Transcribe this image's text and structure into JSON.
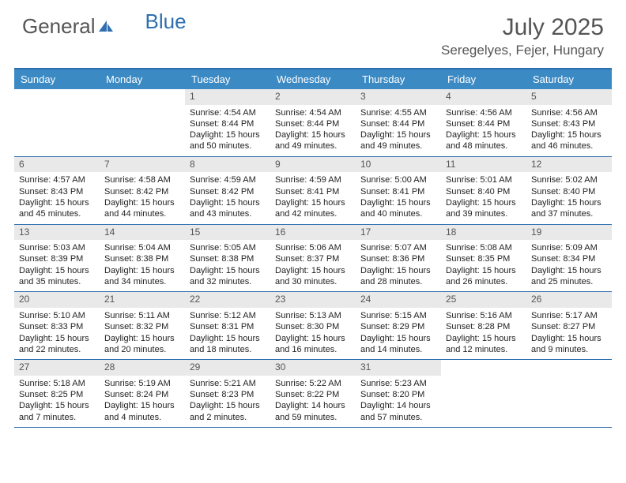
{
  "brand": {
    "part1": "General",
    "part2": "Blue"
  },
  "title": "July 2025",
  "location": "Seregelyes, Fejer, Hungary",
  "colors": {
    "header_bar": "#3b8ac4",
    "accent": "#2f6fb0",
    "cell_num_bg": "#e9e9e9",
    "text": "#555555"
  },
  "dayHeaders": [
    "Sunday",
    "Monday",
    "Tuesday",
    "Wednesday",
    "Thursday",
    "Friday",
    "Saturday"
  ],
  "weeks": [
    [
      {
        "n": "",
        "lines": []
      },
      {
        "n": "",
        "lines": []
      },
      {
        "n": "1",
        "lines": [
          "Sunrise: 4:54 AM",
          "Sunset: 8:44 PM",
          "Daylight: 15 hours and 50 minutes."
        ]
      },
      {
        "n": "2",
        "lines": [
          "Sunrise: 4:54 AM",
          "Sunset: 8:44 PM",
          "Daylight: 15 hours and 49 minutes."
        ]
      },
      {
        "n": "3",
        "lines": [
          "Sunrise: 4:55 AM",
          "Sunset: 8:44 PM",
          "Daylight: 15 hours and 49 minutes."
        ]
      },
      {
        "n": "4",
        "lines": [
          "Sunrise: 4:56 AM",
          "Sunset: 8:44 PM",
          "Daylight: 15 hours and 48 minutes."
        ]
      },
      {
        "n": "5",
        "lines": [
          "Sunrise: 4:56 AM",
          "Sunset: 8:43 PM",
          "Daylight: 15 hours and 46 minutes."
        ]
      }
    ],
    [
      {
        "n": "6",
        "lines": [
          "Sunrise: 4:57 AM",
          "Sunset: 8:43 PM",
          "Daylight: 15 hours and 45 minutes."
        ]
      },
      {
        "n": "7",
        "lines": [
          "Sunrise: 4:58 AM",
          "Sunset: 8:42 PM",
          "Daylight: 15 hours and 44 minutes."
        ]
      },
      {
        "n": "8",
        "lines": [
          "Sunrise: 4:59 AM",
          "Sunset: 8:42 PM",
          "Daylight: 15 hours and 43 minutes."
        ]
      },
      {
        "n": "9",
        "lines": [
          "Sunrise: 4:59 AM",
          "Sunset: 8:41 PM",
          "Daylight: 15 hours and 42 minutes."
        ]
      },
      {
        "n": "10",
        "lines": [
          "Sunrise: 5:00 AM",
          "Sunset: 8:41 PM",
          "Daylight: 15 hours and 40 minutes."
        ]
      },
      {
        "n": "11",
        "lines": [
          "Sunrise: 5:01 AM",
          "Sunset: 8:40 PM",
          "Daylight: 15 hours and 39 minutes."
        ]
      },
      {
        "n": "12",
        "lines": [
          "Sunrise: 5:02 AM",
          "Sunset: 8:40 PM",
          "Daylight: 15 hours and 37 minutes."
        ]
      }
    ],
    [
      {
        "n": "13",
        "lines": [
          "Sunrise: 5:03 AM",
          "Sunset: 8:39 PM",
          "Daylight: 15 hours and 35 minutes."
        ]
      },
      {
        "n": "14",
        "lines": [
          "Sunrise: 5:04 AM",
          "Sunset: 8:38 PM",
          "Daylight: 15 hours and 34 minutes."
        ]
      },
      {
        "n": "15",
        "lines": [
          "Sunrise: 5:05 AM",
          "Sunset: 8:38 PM",
          "Daylight: 15 hours and 32 minutes."
        ]
      },
      {
        "n": "16",
        "lines": [
          "Sunrise: 5:06 AM",
          "Sunset: 8:37 PM",
          "Daylight: 15 hours and 30 minutes."
        ]
      },
      {
        "n": "17",
        "lines": [
          "Sunrise: 5:07 AM",
          "Sunset: 8:36 PM",
          "Daylight: 15 hours and 28 minutes."
        ]
      },
      {
        "n": "18",
        "lines": [
          "Sunrise: 5:08 AM",
          "Sunset: 8:35 PM",
          "Daylight: 15 hours and 26 minutes."
        ]
      },
      {
        "n": "19",
        "lines": [
          "Sunrise: 5:09 AM",
          "Sunset: 8:34 PM",
          "Daylight: 15 hours and 25 minutes."
        ]
      }
    ],
    [
      {
        "n": "20",
        "lines": [
          "Sunrise: 5:10 AM",
          "Sunset: 8:33 PM",
          "Daylight: 15 hours and 22 minutes."
        ]
      },
      {
        "n": "21",
        "lines": [
          "Sunrise: 5:11 AM",
          "Sunset: 8:32 PM",
          "Daylight: 15 hours and 20 minutes."
        ]
      },
      {
        "n": "22",
        "lines": [
          "Sunrise: 5:12 AM",
          "Sunset: 8:31 PM",
          "Daylight: 15 hours and 18 minutes."
        ]
      },
      {
        "n": "23",
        "lines": [
          "Sunrise: 5:13 AM",
          "Sunset: 8:30 PM",
          "Daylight: 15 hours and 16 minutes."
        ]
      },
      {
        "n": "24",
        "lines": [
          "Sunrise: 5:15 AM",
          "Sunset: 8:29 PM",
          "Daylight: 15 hours and 14 minutes."
        ]
      },
      {
        "n": "25",
        "lines": [
          "Sunrise: 5:16 AM",
          "Sunset: 8:28 PM",
          "Daylight: 15 hours and 12 minutes."
        ]
      },
      {
        "n": "26",
        "lines": [
          "Sunrise: 5:17 AM",
          "Sunset: 8:27 PM",
          "Daylight: 15 hours and 9 minutes."
        ]
      }
    ],
    [
      {
        "n": "27",
        "lines": [
          "Sunrise: 5:18 AM",
          "Sunset: 8:25 PM",
          "Daylight: 15 hours and 7 minutes."
        ]
      },
      {
        "n": "28",
        "lines": [
          "Sunrise: 5:19 AM",
          "Sunset: 8:24 PM",
          "Daylight: 15 hours and 4 minutes."
        ]
      },
      {
        "n": "29",
        "lines": [
          "Sunrise: 5:21 AM",
          "Sunset: 8:23 PM",
          "Daylight: 15 hours and 2 minutes."
        ]
      },
      {
        "n": "30",
        "lines": [
          "Sunrise: 5:22 AM",
          "Sunset: 8:22 PM",
          "Daylight: 14 hours and 59 minutes."
        ]
      },
      {
        "n": "31",
        "lines": [
          "Sunrise: 5:23 AM",
          "Sunset: 8:20 PM",
          "Daylight: 14 hours and 57 minutes."
        ]
      },
      {
        "n": "",
        "lines": []
      },
      {
        "n": "",
        "lines": []
      }
    ]
  ]
}
